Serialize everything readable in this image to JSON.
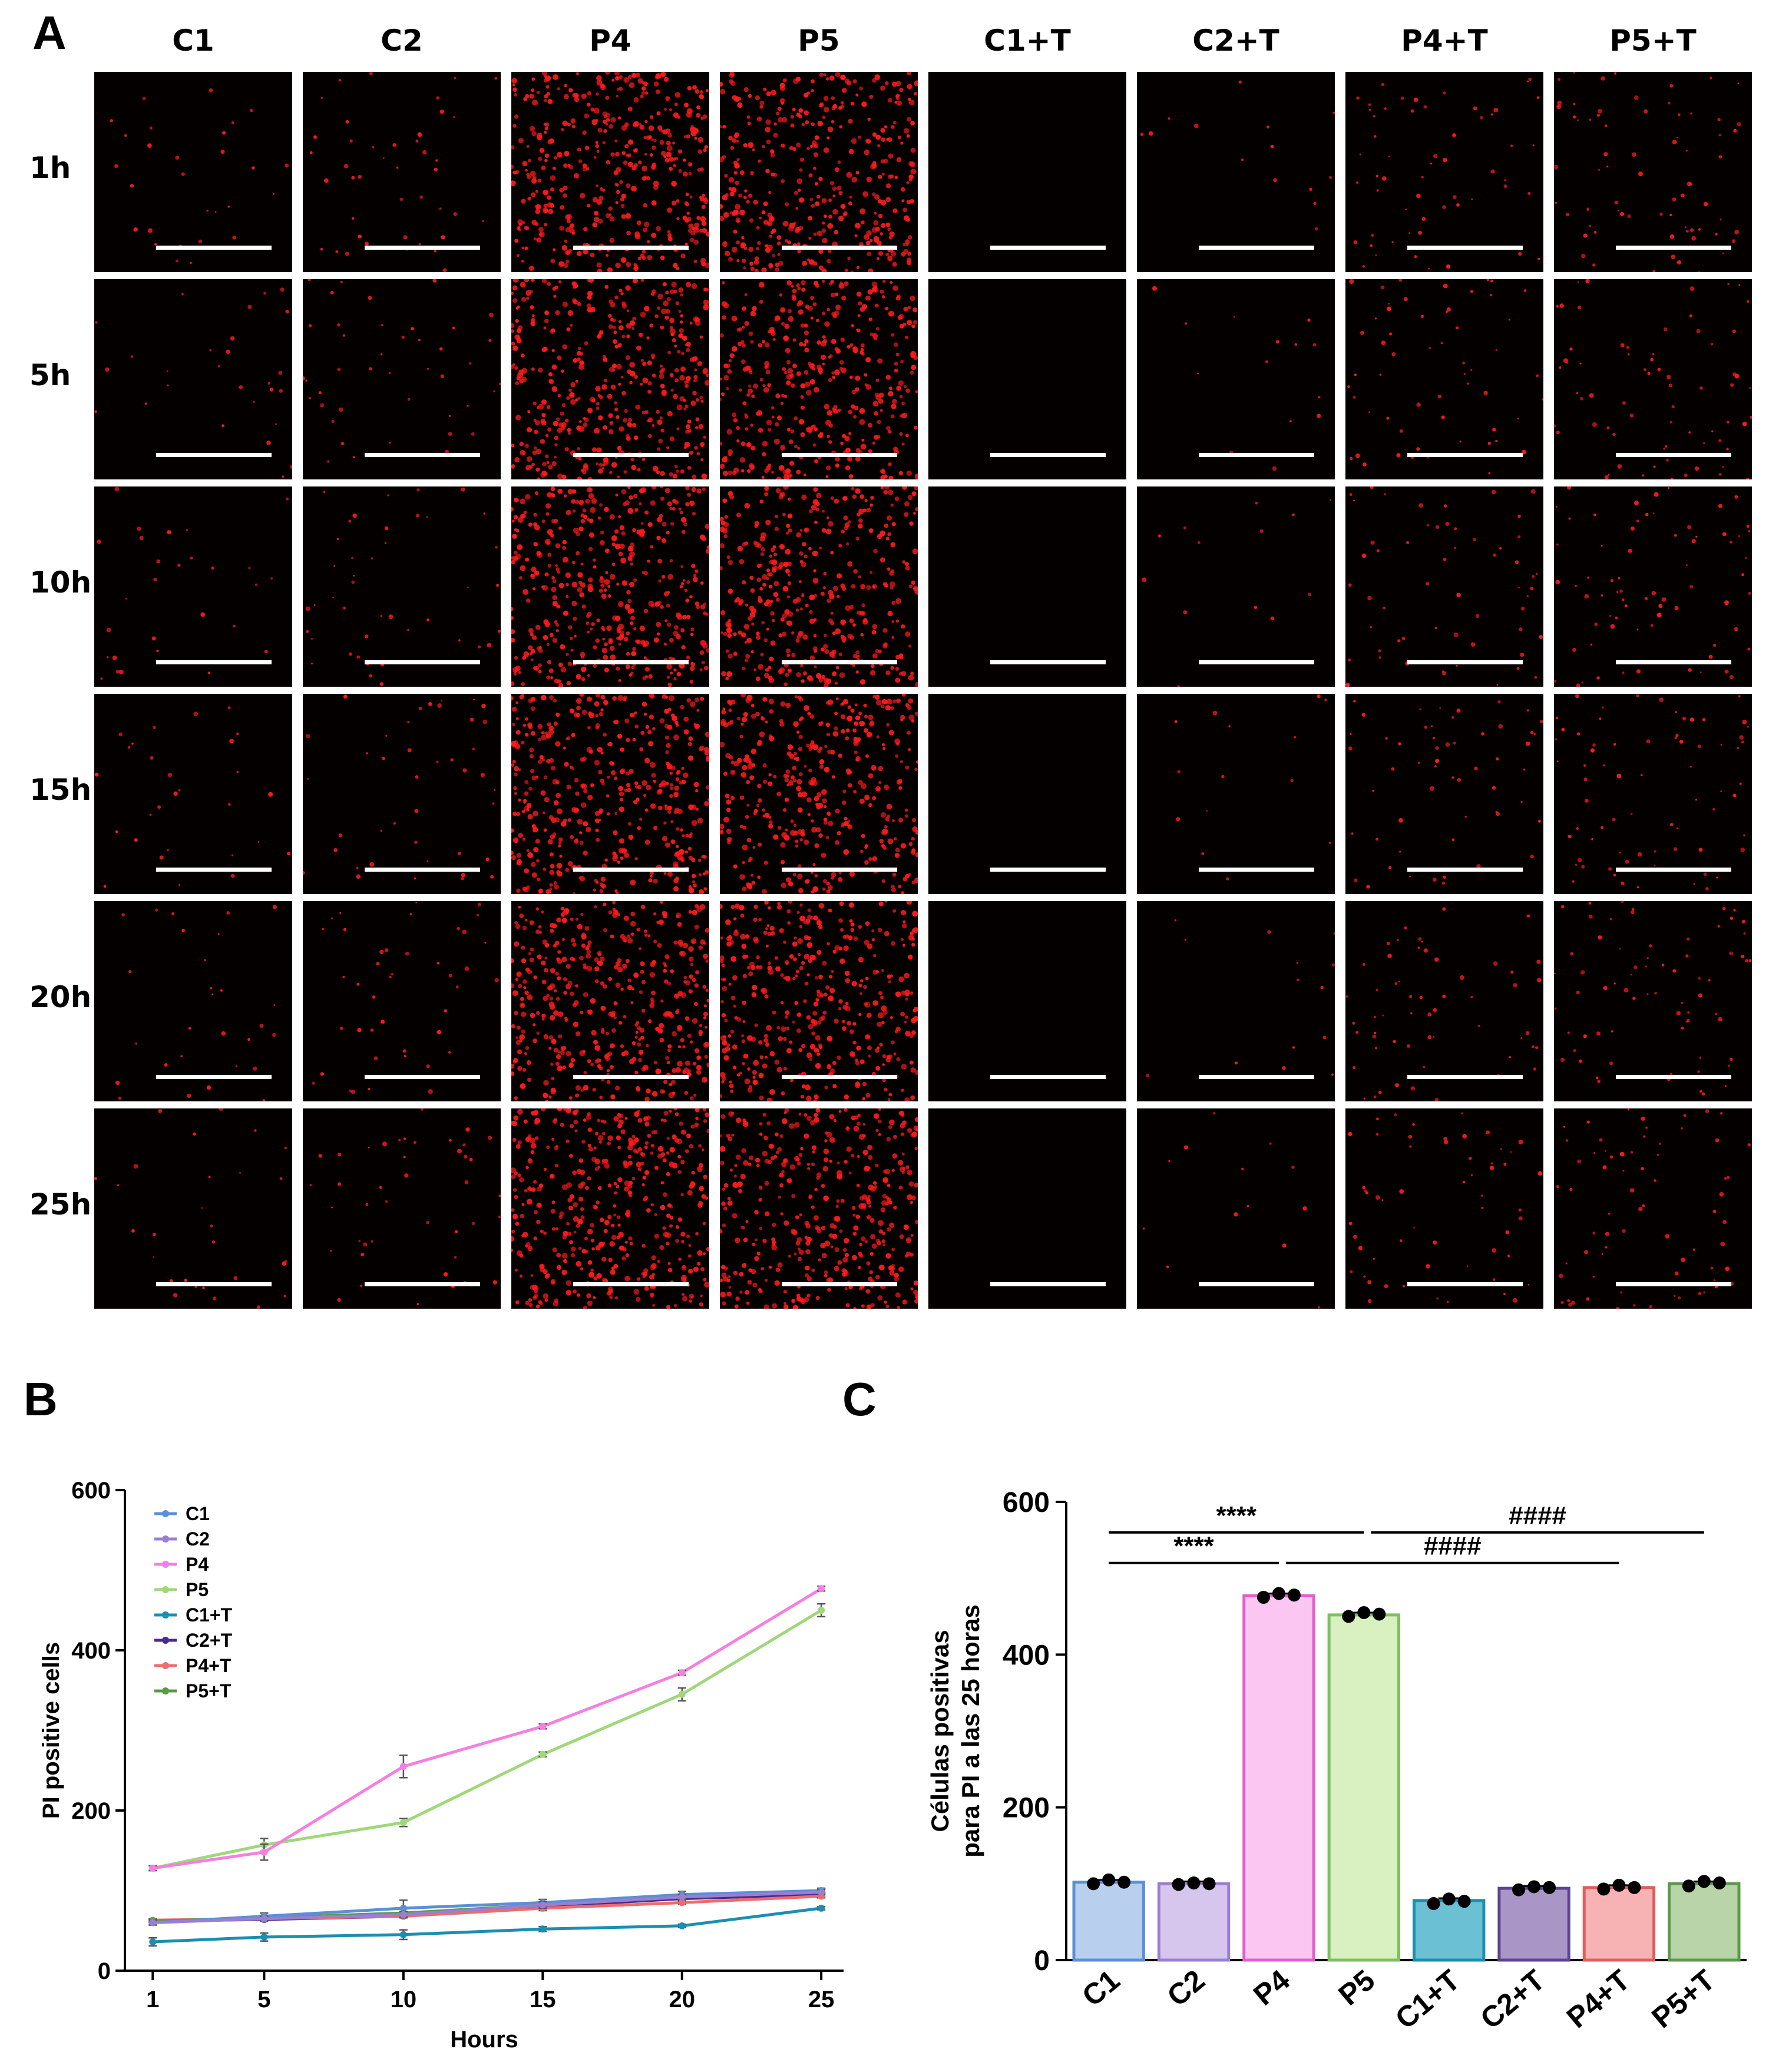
{
  "panel_labels": {
    "a": "A",
    "b": "B",
    "c": "C"
  },
  "micrograph_grid": {
    "columns": [
      {
        "label": "C1",
        "signal": 0.02
      },
      {
        "label": "C2",
        "signal": 0.03
      },
      {
        "label": "P4",
        "signal": 0.92
      },
      {
        "label": "P5",
        "signal": 0.85
      },
      {
        "label": "C1+T",
        "signal": 0.0
      },
      {
        "label": "C2+T",
        "signal": 0.01
      },
      {
        "label": "P4+T",
        "signal": 0.04
      },
      {
        "label": "P5+T",
        "signal": 0.05
      }
    ],
    "rows": [
      "1h",
      "5h",
      "10h",
      "15h",
      "20h",
      "25h"
    ],
    "stain_color": "#ff1a1a",
    "background_color": "#050000"
  },
  "chart_data": [
    {
      "panel": "B",
      "type": "line",
      "x": [
        1,
        5,
        10,
        15,
        20,
        25
      ],
      "xticks": [
        1,
        5,
        10,
        15,
        20,
        25
      ],
      "xlabel": "Hours",
      "ylabel": "PI positive cells",
      "ylim": [
        0,
        600
      ],
      "yticks": [
        0,
        200,
        400,
        600
      ],
      "legend_position": "top-left",
      "series": [
        {
          "name": "C1",
          "color": "#5b8fd6",
          "values": [
            60,
            68,
            78,
            85,
            95,
            100
          ],
          "errors": [
            3,
            4,
            10,
            4,
            4,
            3
          ]
        },
        {
          "name": "C2",
          "color": "#9a7fd1",
          "values": [
            60,
            65,
            70,
            82,
            92,
            98
          ],
          "errors": [
            3,
            3,
            4,
            4,
            3,
            3
          ]
        },
        {
          "name": "P4",
          "color": "#f57fe0",
          "values": [
            128,
            148,
            255,
            305,
            372,
            477
          ],
          "errors": [
            3,
            10,
            14,
            3,
            3,
            3
          ]
        },
        {
          "name": "P5",
          "color": "#9fd77a",
          "values": [
            128,
            157,
            185,
            270,
            345,
            450
          ],
          "errors": [
            3,
            8,
            5,
            3,
            8,
            8
          ]
        },
        {
          "name": "C1+T",
          "color": "#1a8fb0",
          "values": [
            36,
            42,
            45,
            52,
            56,
            78
          ],
          "errors": [
            5,
            5,
            6,
            3,
            2,
            2
          ]
        },
        {
          "name": "C2+T",
          "color": "#4a2a8a",
          "values": [
            62,
            64,
            68,
            80,
            90,
            95
          ],
          "errors": [
            2,
            2,
            2,
            3,
            3,
            2
          ]
        },
        {
          "name": "P4+T",
          "color": "#f06b6b",
          "values": [
            63,
            65,
            68,
            78,
            85,
            93
          ],
          "errors": [
            2,
            2,
            2,
            3,
            2,
            2
          ]
        },
        {
          "name": "P5+T",
          "color": "#5a9a4a",
          "values": [
            62,
            66,
            72,
            82,
            92,
            100
          ],
          "errors": [
            2,
            2,
            2,
            2,
            2,
            2
          ]
        }
      ]
    },
    {
      "panel": "C",
      "type": "bar",
      "categories": [
        "C1",
        "C2",
        "P4",
        "P5",
        "C1+T",
        "C2+T",
        "P4+T",
        "P5+T"
      ],
      "values": [
        102,
        100,
        477,
        452,
        78,
        94,
        95,
        100
      ],
      "points": [
        [
          100,
          105,
          102
        ],
        [
          99,
          101,
          100
        ],
        [
          475,
          480,
          478
        ],
        [
          450,
          455,
          453
        ],
        [
          74,
          80,
          77
        ],
        [
          92,
          96,
          95
        ],
        [
          93,
          98,
          95
        ],
        [
          97,
          103,
          101
        ]
      ],
      "ylabel": "Células positivas para PI a las 25 horas",
      "ylim": [
        0,
        600
      ],
      "yticks": [
        0,
        200,
        400,
        600
      ],
      "fill_colors": [
        "#b8d0ee",
        "#d6c6ee",
        "#fbc6f2",
        "#d9f0c0",
        "#6cc0d4",
        "#a996c6",
        "#f7b3b3",
        "#b9d4a8"
      ],
      "edge_colors": [
        "#5b8fd6",
        "#9a7fd1",
        "#e060cc",
        "#7cc060",
        "#1a8fb0",
        "#5c4590",
        "#e25c5c",
        "#5a9a4a"
      ],
      "significance": [
        {
          "from": 0,
          "to": 3,
          "label": "****",
          "y": 560
        },
        {
          "from": 0,
          "to": 2,
          "label": "****",
          "y": 520
        },
        {
          "from": 3,
          "to": 7,
          "label": "####",
          "y": 560
        },
        {
          "from": 2,
          "to": 6,
          "label": "####",
          "y": 520
        }
      ]
    }
  ]
}
